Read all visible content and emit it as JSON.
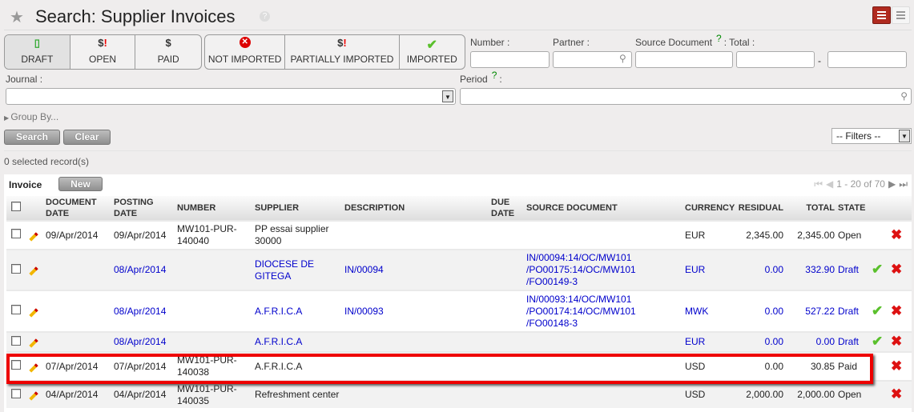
{
  "header": {
    "title": "Search: Supplier Invoices",
    "help": "?"
  },
  "filters": {
    "state_buttons": [
      {
        "label": "DRAFT",
        "icon": "draft-doc-icon"
      },
      {
        "label": "OPEN",
        "icon": "dollar-alert-icon"
      },
      {
        "label": "PAID",
        "icon": "dollar-icon"
      }
    ],
    "import_buttons": [
      {
        "label": "NOT IMPORTED",
        "icon": "red-x-circle-icon"
      },
      {
        "label": "PARTIALLY IMPORTED",
        "icon": "dollar-alert-icon"
      },
      {
        "label": "IMPORTED",
        "icon": "green-check-icon"
      }
    ],
    "number_label": "Number :",
    "partner_label": "Partner :",
    "source_label": "Source Document",
    "source_help": "?",
    "total_label": ": Total :",
    "total_sep": "-",
    "journal_label": "Journal :",
    "period_label": "Period",
    "period_help": "?",
    "period_colon": ":",
    "group_by": "Group By...",
    "search": "Search",
    "clear": "Clear",
    "filters_select": "-- Filters --"
  },
  "selected": "0 selected record(s)",
  "list": {
    "title": "Invoice",
    "new": "New",
    "pager": "1 - 20 of 70",
    "columns": [
      "DOCUMENT DATE",
      "POSTING DATE",
      "NUMBER",
      "SUPPLIER",
      "DESCRIPTION",
      "DUE DATE",
      "SOURCE DOCUMENT",
      "CURRENCY",
      "RESIDUAL",
      "TOTAL",
      "STATE"
    ],
    "rows": [
      {
        "doc_date": "09/Apr/2014",
        "posting_date": "09/Apr/2014",
        "number": "MW101-PUR-140040",
        "supplier": "PP essai supplier 30000",
        "description": "",
        "due": "",
        "source": "",
        "currency": "EUR",
        "residual": "2,345.00",
        "total": "2,345.00",
        "state": "Open",
        "draft": false
      },
      {
        "doc_date": "",
        "posting_date": "08/Apr/2014",
        "number": "",
        "supplier": "DIOCESE DE GITEGA",
        "description": "IN/00094",
        "due": "",
        "source": "IN/00094:14/OC/MW101 /PO00175:14/OC/MW101 /FO00149-3",
        "currency": "EUR",
        "residual": "0.00",
        "total": "332.90",
        "state": "Draft",
        "draft": true
      },
      {
        "doc_date": "",
        "posting_date": "08/Apr/2014",
        "number": "",
        "supplier": "A.F.R.I.C.A",
        "description": "IN/00093",
        "due": "",
        "source": "IN/00093:14/OC/MW101 /PO00174:14/OC/MW101 /FO00148-3",
        "currency": "MWK",
        "residual": "0.00",
        "total": "527.22",
        "state": "Draft",
        "draft": true
      },
      {
        "doc_date": "",
        "posting_date": "08/Apr/2014",
        "number": "",
        "supplier": "A.F.R.I.C.A",
        "description": "",
        "due": "",
        "source": "",
        "currency": "EUR",
        "residual": "0.00",
        "total": "0.00",
        "state": "Draft",
        "draft": true
      },
      {
        "doc_date": "07/Apr/2014",
        "posting_date": "07/Apr/2014",
        "number": "MW101-PUR-140038",
        "supplier": "A.F.R.I.C.A",
        "description": "",
        "due": "",
        "source": "",
        "currency": "USD",
        "residual": "0.00",
        "total": "30.85",
        "state": "Paid",
        "draft": false
      },
      {
        "doc_date": "04/Apr/2014",
        "posting_date": "04/Apr/2014",
        "number": "MW101-PUR-140035",
        "supplier": "Refreshment center",
        "description": "",
        "due": "",
        "source": "",
        "currency": "USD",
        "residual": "2,000.00",
        "total": "2,000.00",
        "state": "Open",
        "draft": false
      }
    ]
  },
  "colors": {
    "highlight": "#ee0000",
    "draft_link": "#0000cc",
    "view_active": "#b02a1f"
  }
}
